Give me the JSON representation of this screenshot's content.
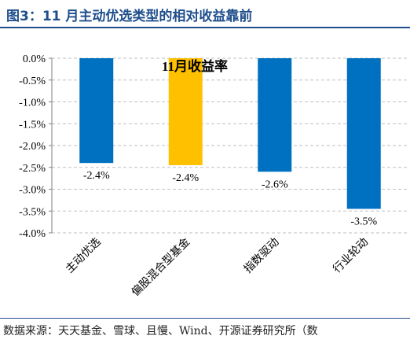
{
  "figure_title": "图3：11 月主动优选类型的相对收益靠前",
  "source_note": "数据来源：天天基金、雪球、且慢、Wind、开源证券研究所（数",
  "chart_data": {
    "type": "bar",
    "title": "11月收益率",
    "categories": [
      "主动优选",
      "偏股混合型基金",
      "指数驱动",
      "行业轮动"
    ],
    "values": [
      -2.4,
      -2.45,
      -2.6,
      -3.45
    ],
    "data_labels": [
      "-2.4%",
      "-2.4%",
      "-2.6%",
      "-3.5%"
    ],
    "bar_colors": [
      "#0070c0",
      "#ffc000",
      "#0070c0",
      "#0070c0"
    ],
    "ylim": [
      -4.0,
      0.0
    ],
    "yticks": [
      0.0,
      -0.5,
      -1.0,
      -1.5,
      -2.0,
      -2.5,
      -3.0,
      -3.5,
      -4.0
    ],
    "ytick_labels": [
      "0.0%",
      "-0.5%",
      "-1.0%",
      "-1.5%",
      "-2.0%",
      "-2.5%",
      "-3.0%",
      "-3.5%",
      "-4.0%"
    ],
    "grid": true,
    "grid_style": "dashed",
    "legend": false
  }
}
